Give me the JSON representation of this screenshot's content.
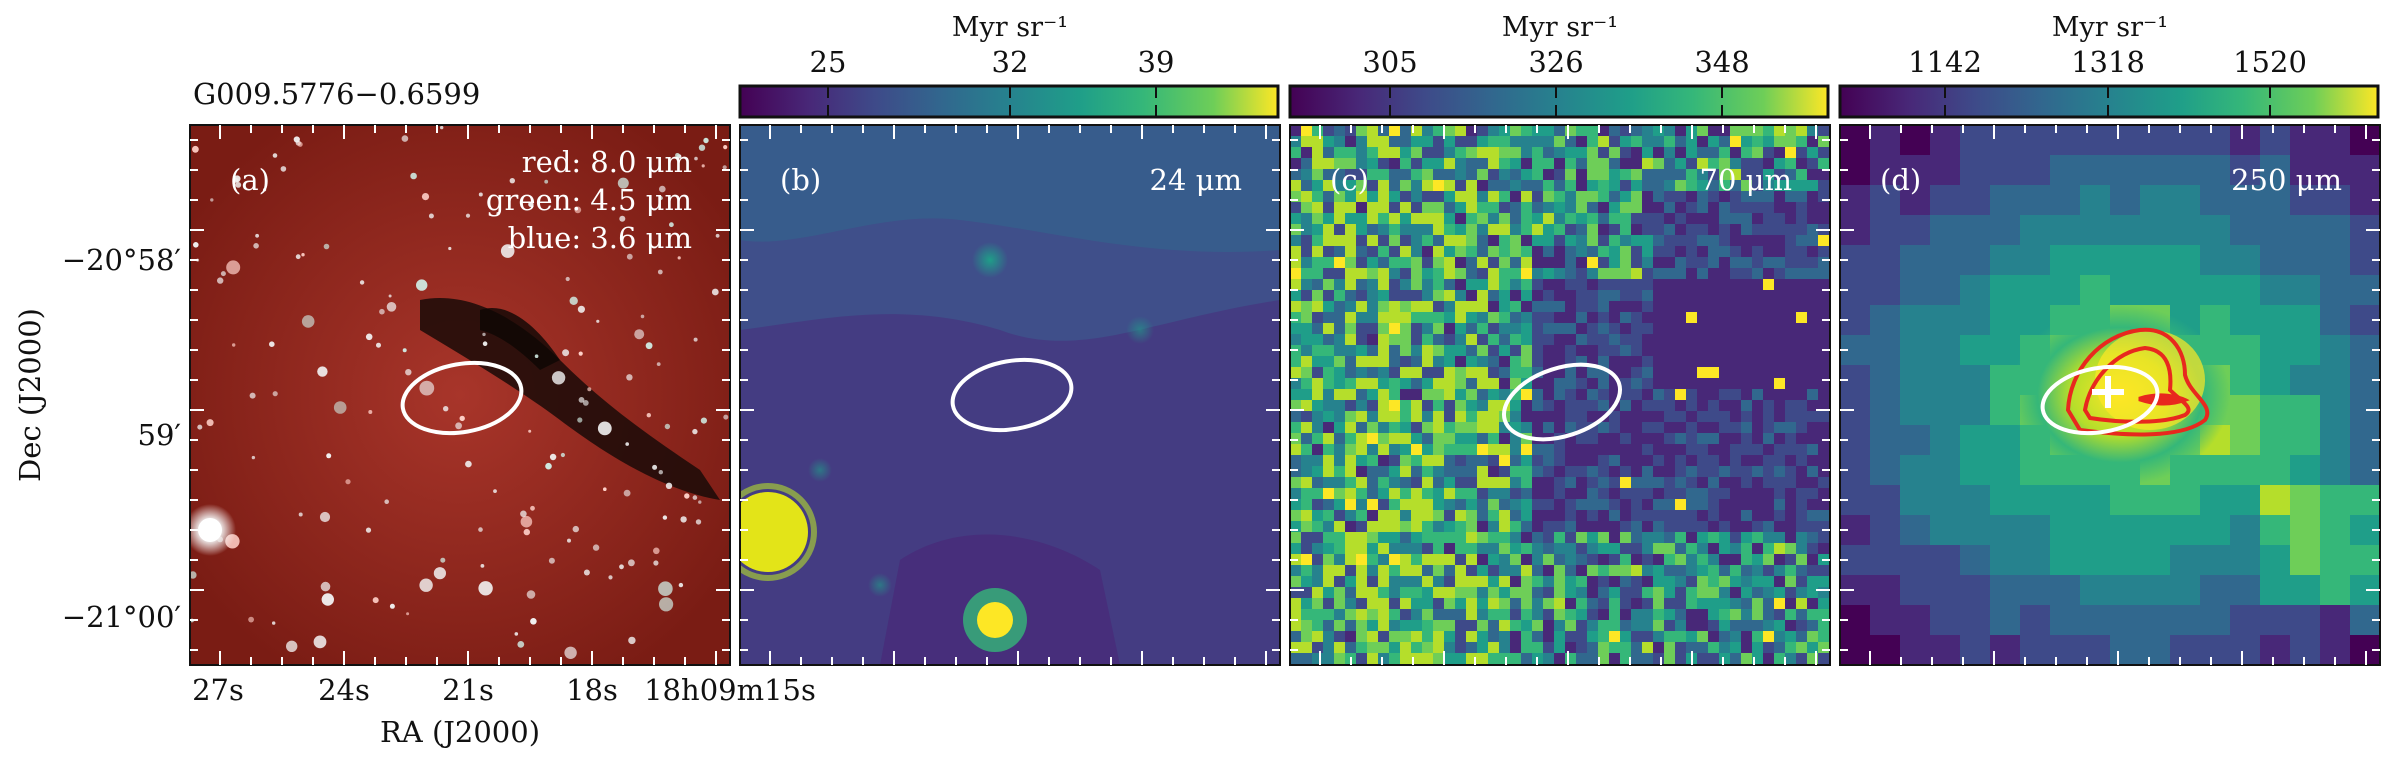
{
  "object_name": "G009.5776−0.6599",
  "axes": {
    "ylabel": "Dec (J2000)",
    "xlabel": "RA (J2000)",
    "yticks": [
      "−20°58′",
      "59′",
      "−21°00′"
    ],
    "xticks": [
      "27s",
      "24s",
      "21s",
      "18s",
      "18h09m15s"
    ]
  },
  "panels": [
    {
      "id": "a",
      "label": "(a)",
      "legend": [
        "red: 8.0 μm",
        "green: 4.5 μm",
        "blue: 3.6 μm"
      ],
      "colormap": "rgb composite"
    },
    {
      "id": "b",
      "label": "(b)",
      "wavelength": "24 μm",
      "colorbar": {
        "unit": "Myr sr⁻¹",
        "ticks": [
          "25",
          "32",
          "39"
        ]
      }
    },
    {
      "id": "c",
      "label": "(c)",
      "wavelength": "70 μm",
      "colorbar": {
        "unit": "Myr sr⁻¹",
        "ticks": [
          "305",
          "326",
          "348"
        ]
      }
    },
    {
      "id": "d",
      "label": "(d)",
      "wavelength": "250 μm",
      "colorbar": {
        "unit": "Myr sr⁻¹",
        "ticks": [
          "1142",
          "1318",
          "1520"
        ]
      }
    }
  ],
  "colors": {
    "ellipse": "#ffffff",
    "contour": "#e8281e",
    "viridis_low": "#440154",
    "viridis_high": "#fde725"
  }
}
